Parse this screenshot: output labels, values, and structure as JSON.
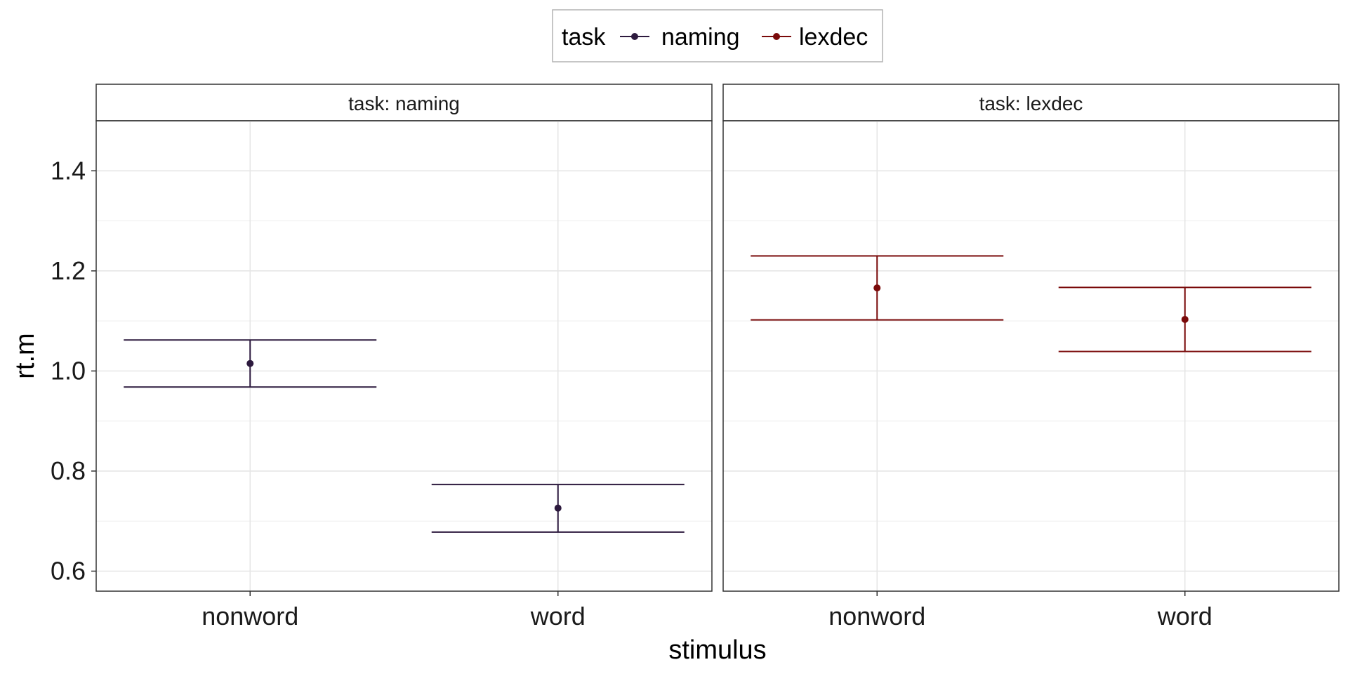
{
  "chart_data": {
    "type": "errorbar",
    "title": "",
    "xlabel": "stimulus",
    "ylabel": "rt.m",
    "ylim": [
      0.56,
      1.5
    ],
    "yticks": [
      0.6,
      0.8,
      1.0,
      1.2,
      1.4
    ],
    "ytick_labels": [
      "0.6",
      "0.8",
      "1.0",
      "1.2",
      "1.4"
    ],
    "categories": [
      "nonword",
      "word"
    ],
    "grid": true,
    "legend": {
      "title": "task",
      "position": "top",
      "entries": [
        "naming",
        "lexdec"
      ]
    },
    "facets": [
      {
        "label": "task: naming",
        "series": "naming",
        "color": "#2d1a3e",
        "points": [
          {
            "x": "nonword",
            "y": 1.015,
            "ymin": 0.968,
            "ymax": 1.062
          },
          {
            "x": "word",
            "y": 0.726,
            "ymin": 0.678,
            "ymax": 0.773
          }
        ]
      },
      {
        "label": "task: lexdec",
        "series": "lexdec",
        "color": "#7a0a0a",
        "points": [
          {
            "x": "nonword",
            "y": 1.166,
            "ymin": 1.102,
            "ymax": 1.23
          },
          {
            "x": "word",
            "y": 1.103,
            "ymin": 1.039,
            "ymax": 1.167
          }
        ]
      }
    ]
  }
}
